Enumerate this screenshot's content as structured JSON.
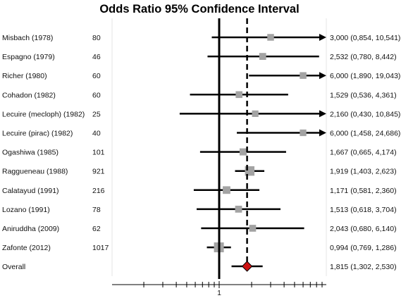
{
  "chart_data": {
    "type": "forest",
    "title": "Odds Ratio 95% Confidence Interval",
    "xscale": "log",
    "xlim": [
      0.1,
      30
    ],
    "reference_value": 1,
    "x_tick_labels": [
      "1"
    ],
    "pooled_estimate_line": 1.815,
    "studies": [
      {
        "name": "Misbach (1978)",
        "n": "80",
        "or": 3.0,
        "lo": 0.854,
        "hi": 10.541,
        "ci_text": "3,000 (0,854, 10,541)",
        "arrow": true,
        "weight": 0.15
      },
      {
        "name": "Espagno (1979)",
        "n": "46",
        "or": 2.532,
        "lo": 0.78,
        "hi": 8.442,
        "ci_text": "2,532 (0,780, 8,442)",
        "arrow": false,
        "weight": 0.18
      },
      {
        "name": "Richer (1980)",
        "n": "60",
        "or": 6.0,
        "lo": 1.89,
        "hi": 19.043,
        "ci_text": "6,000 (1,890, 19,043)",
        "arrow": true,
        "weight": 0.15
      },
      {
        "name": "Cohadon (1982)",
        "n": "60",
        "or": 1.529,
        "lo": 0.536,
        "hi": 4.361,
        "ci_text": "1,529 (0,536, 4,361)",
        "arrow": false,
        "weight": 0.16
      },
      {
        "name": "Lecuire (mecloph) (1982)",
        "n": "25",
        "or": 2.16,
        "lo": 0.43,
        "hi": 10.845,
        "ci_text": "2,160 (0,430, 10,845)",
        "arrow": true,
        "weight": 0.12
      },
      {
        "name": "Lecuire (pirac) (1982)",
        "n": "40",
        "or": 6.0,
        "lo": 1.458,
        "hi": 24.686,
        "ci_text": "6,000 (1,458, 24,686)",
        "arrow": true,
        "weight": 0.13
      },
      {
        "name": "Ogashiwa (1985)",
        "n": "101",
        "or": 1.667,
        "lo": 0.665,
        "hi": 4.174,
        "ci_text": "1,667 (0,665, 4,174)",
        "arrow": false,
        "weight": 0.2
      },
      {
        "name": "Raggueneau (1988)",
        "n": "921",
        "or": 1.919,
        "lo": 1.403,
        "hi": 2.623,
        "ci_text": "1,919 (1,403, 2,623)",
        "arrow": false,
        "weight": 0.55
      },
      {
        "name": "Calatayud (1991)",
        "n": "216",
        "or": 1.171,
        "lo": 0.581,
        "hi": 2.36,
        "ci_text": "1,171 (0,581, 2,360)",
        "arrow": false,
        "weight": 0.28
      },
      {
        "name": "Lozano (1991)",
        "n": "78",
        "or": 1.513,
        "lo": 0.618,
        "hi": 3.704,
        "ci_text": "1,513 (0,618, 3,704)",
        "arrow": false,
        "weight": 0.18
      },
      {
        "name": "Aniruddha (2009)",
        "n": "62",
        "or": 2.043,
        "lo": 0.68,
        "hi": 6.14,
        "ci_text": "2,043 (0,680, 6,140)",
        "arrow": false,
        "weight": 0.17
      },
      {
        "name": "Zafonte (2012)",
        "n": "1017",
        "or": 0.994,
        "lo": 0.769,
        "hi": 1.286,
        "ci_text": "0,994 (0,769, 1,286)",
        "arrow": false,
        "weight": 0.6
      }
    ],
    "overall": {
      "name": "Overall",
      "or": 1.815,
      "lo": 1.302,
      "hi": 2.53,
      "ci_text": "1,815 (1,302, 2,530)"
    }
  }
}
